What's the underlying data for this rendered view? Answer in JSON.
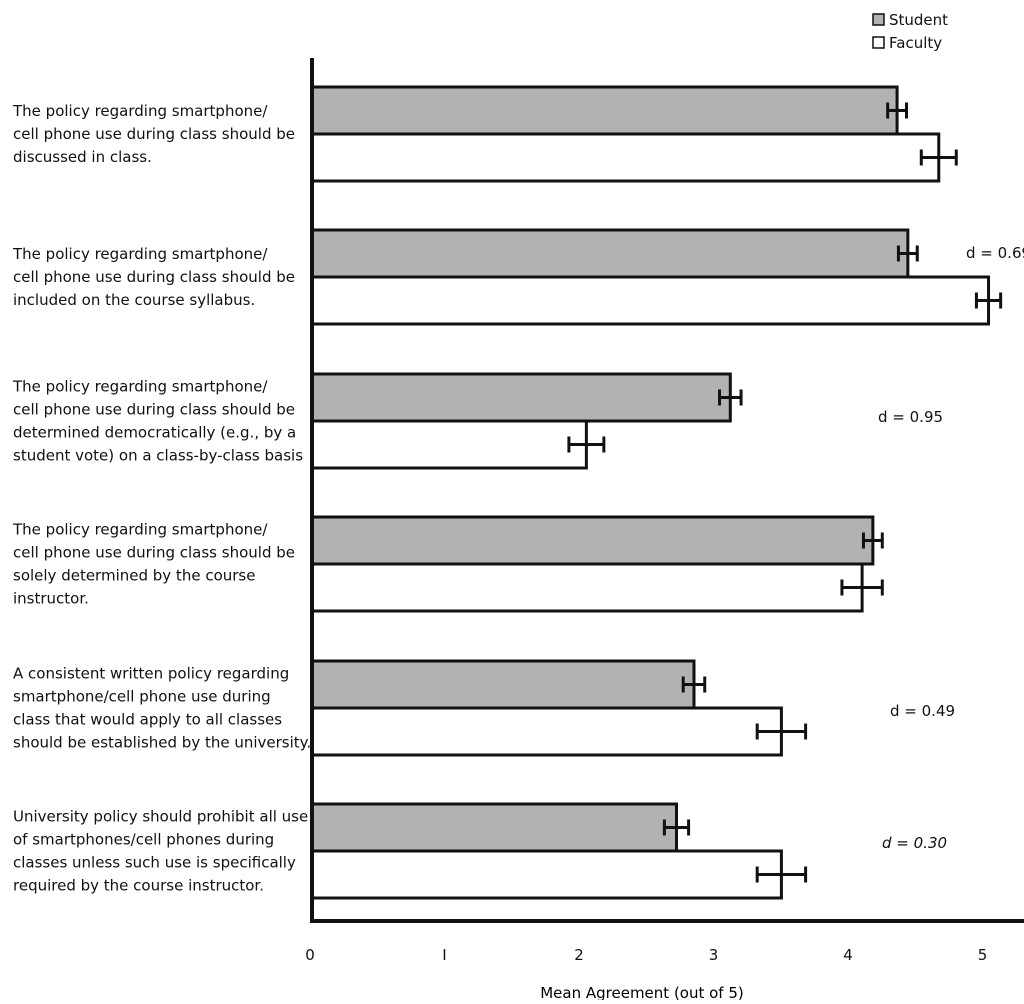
{
  "chart_data": {
    "type": "bar",
    "orientation": "horizontal",
    "xlabel": "Mean Agreement (out of 5)",
    "xlim": [
      0,
      5
    ],
    "xticks": [
      {
        "value": 0,
        "label": "0"
      },
      {
        "value": 1,
        "label": "I"
      },
      {
        "value": 2,
        "label": "2"
      },
      {
        "value": 3,
        "label": "3"
      },
      {
        "value": 4,
        "label": "4"
      },
      {
        "value": 5,
        "label": "5"
      }
    ],
    "legend": {
      "position": "top-right",
      "entries": [
        {
          "name": "Student",
          "color": "#b3b1b1"
        },
        {
          "name": "Faculty",
          "color": "#ffffff"
        }
      ]
    },
    "categories": [
      {
        "label_lines": [
          "The policy regarding smartphone/",
          "cell phone use during class should be",
          "discussed in class."
        ],
        "student": {
          "mean": 4.35,
          "err": 0.07
        },
        "faculty": {
          "mean": 4.66,
          "err": 0.13
        },
        "effect_label": ""
      },
      {
        "label_lines": [
          "The policy regarding smartphone/",
          "cell phone use during class should be",
          "included on the course syllabus."
        ],
        "student": {
          "mean": 4.43,
          "err": 0.07
        },
        "faculty": {
          "mean": 5.03,
          "err": 0.09
        },
        "effect_label": "d = 0.69"
      },
      {
        "label_lines": [
          "The policy regarding smartphone/",
          "cell phone use during class should be",
          "determined democratically (e.g., by a",
          "student vote) on a class-by-class basis"
        ],
        "student": {
          "mean": 3.11,
          "err": 0.08
        },
        "faculty": {
          "mean": 2.04,
          "err": 0.13
        },
        "effect_label": "d = 0.95"
      },
      {
        "label_lines": [
          "The policy regarding smartphone/",
          "cell phone use during class should be",
          "solely determined by the course",
          "instructor."
        ],
        "student": {
          "mean": 4.17,
          "err": 0.07
        },
        "faculty": {
          "mean": 4.09,
          "err": 0.15
        },
        "effect_label": ""
      },
      {
        "label_lines": [
          "A consistent written policy regarding",
          "smartphone/cell phone use during",
          "class that would apply to all classes",
          "should be established by the university."
        ],
        "student": {
          "mean": 2.84,
          "err": 0.08
        },
        "faculty": {
          "mean": 3.49,
          "err": 0.18
        },
        "effect_label": "d = 0.49"
      },
      {
        "label_lines": [
          "University policy should prohibit all use",
          "of smartphones/cell phones during",
          "classes unless such use is specifically",
          "required by the course instructor."
        ],
        "student": {
          "mean": 2.71,
          "err": 0.09
        },
        "faculty": {
          "mean": 3.49,
          "err": 0.18
        },
        "effect_label": "d = 0.30"
      }
    ]
  }
}
